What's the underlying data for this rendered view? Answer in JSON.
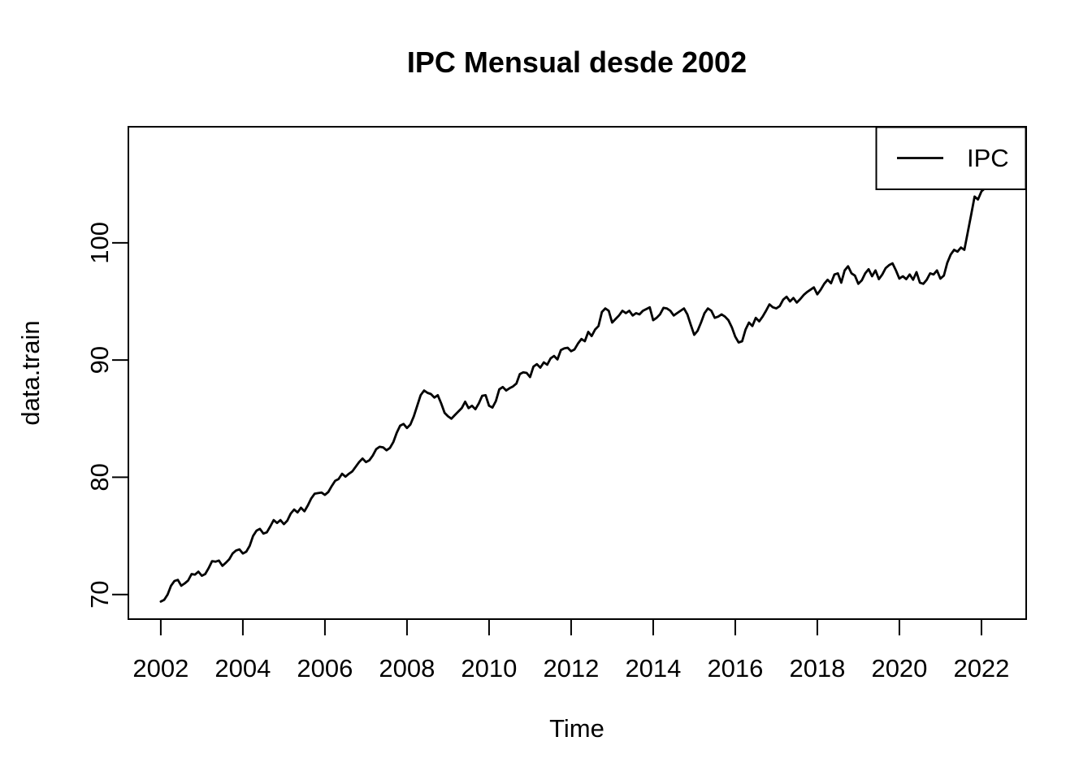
{
  "page": {
    "background": "#ffffff",
    "foreground": "#000000"
  },
  "chart_data": {
    "type": "line",
    "title": "IPC Mensual desde 2002",
    "xlabel": "Time",
    "ylabel": "data.train",
    "grid": false,
    "frame": true,
    "xlim": [
      2001.21,
      2023.09
    ],
    "ylim": [
      67.9,
      109.9
    ],
    "x_ticks": [
      2002,
      2004,
      2006,
      2008,
      2010,
      2012,
      2014,
      2016,
      2018,
      2020,
      2022
    ],
    "y_ticks": [
      70,
      80,
      90,
      100
    ],
    "line_color": "#000000",
    "axis_color": "#000000",
    "legend": {
      "position": "topright",
      "entries": [
        {
          "label": "IPC",
          "color": "#000000",
          "style": "line"
        }
      ]
    },
    "series": [
      {
        "name": "IPC",
        "color": "#000000",
        "start_year": 2002,
        "frequency_per_year": 12,
        "values": [
          69.4,
          69.55,
          70.0,
          70.75,
          71.15,
          71.25,
          70.75,
          70.95,
          71.2,
          71.75,
          71.7,
          71.95,
          71.6,
          71.75,
          72.25,
          72.85,
          72.8,
          72.9,
          72.45,
          72.7,
          73.0,
          73.5,
          73.75,
          73.85,
          73.5,
          73.65,
          74.15,
          75.0,
          75.45,
          75.6,
          75.2,
          75.3,
          75.8,
          76.35,
          76.1,
          76.35,
          76.0,
          76.3,
          76.9,
          77.25,
          77.0,
          77.4,
          77.1,
          77.6,
          78.2,
          78.6,
          78.65,
          78.7,
          78.5,
          78.75,
          79.25,
          79.7,
          79.85,
          80.3,
          80.05,
          80.3,
          80.5,
          80.9,
          81.3,
          81.6,
          81.3,
          81.45,
          81.85,
          82.4,
          82.6,
          82.55,
          82.3,
          82.5,
          83.0,
          83.8,
          84.4,
          84.55,
          84.2,
          84.5,
          85.2,
          86.1,
          87.0,
          87.4,
          87.2,
          87.1,
          86.8,
          87.0,
          86.3,
          85.5,
          85.2,
          85.0,
          85.3,
          85.6,
          85.9,
          86.45,
          85.9,
          86.1,
          85.8,
          86.3,
          86.95,
          87.0,
          86.1,
          85.95,
          86.5,
          87.5,
          87.7,
          87.4,
          87.6,
          87.75,
          88.0,
          88.8,
          88.95,
          88.9,
          88.55,
          89.45,
          89.65,
          89.35,
          89.8,
          89.6,
          90.15,
          90.35,
          90.05,
          90.85,
          91.0,
          91.05,
          90.75,
          90.9,
          91.4,
          91.8,
          91.6,
          92.4,
          92.05,
          92.6,
          92.9,
          94.1,
          94.4,
          94.2,
          93.2,
          93.5,
          93.8,
          94.2,
          94.0,
          94.2,
          93.8,
          94.0,
          93.9,
          94.2,
          94.35,
          94.5,
          93.4,
          93.6,
          93.9,
          94.45,
          94.4,
          94.2,
          93.8,
          94.0,
          94.2,
          94.4,
          93.9,
          93.0,
          92.15,
          92.5,
          93.2,
          94.0,
          94.4,
          94.2,
          93.6,
          93.7,
          93.9,
          93.7,
          93.4,
          92.8,
          92.0,
          91.5,
          91.6,
          92.6,
          93.2,
          92.9,
          93.6,
          93.3,
          93.7,
          94.2,
          94.75,
          94.5,
          94.4,
          94.6,
          95.15,
          95.4,
          95.0,
          95.3,
          94.9,
          95.2,
          95.55,
          95.8,
          96.0,
          96.2,
          95.6,
          96.0,
          96.5,
          96.85,
          96.55,
          97.3,
          97.4,
          96.6,
          97.65,
          98.0,
          97.4,
          97.2,
          96.5,
          96.8,
          97.4,
          97.75,
          97.15,
          97.65,
          96.9,
          97.3,
          97.85,
          98.1,
          98.25,
          97.65,
          96.95,
          97.15,
          96.9,
          97.3,
          96.85,
          97.5,
          96.6,
          96.5,
          96.85,
          97.4,
          97.3,
          97.65,
          96.95,
          97.2,
          98.3,
          99.0,
          99.4,
          99.25,
          99.6,
          99.4,
          100.9,
          102.4,
          103.95,
          103.7,
          104.4,
          104.65,
          106.2
        ]
      }
    ]
  }
}
